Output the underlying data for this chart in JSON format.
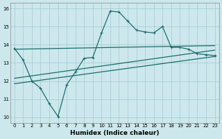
{
  "title": "",
  "xlabel": "Humidex (Indice chaleur)",
  "background_color": "#cce8ec",
  "grid_color": "#aacdd4",
  "line_color": "#1a6b6b",
  "xlim": [
    -0.5,
    23.5
  ],
  "ylim": [
    9.7,
    16.3
  ],
  "xticks": [
    0,
    1,
    2,
    3,
    4,
    5,
    6,
    7,
    8,
    9,
    10,
    11,
    12,
    13,
    14,
    15,
    16,
    17,
    18,
    19,
    20,
    21,
    22,
    23
  ],
  "yticks": [
    10,
    11,
    12,
    13,
    14,
    15,
    16
  ],
  "line1_x": [
    0,
    1,
    2,
    3,
    4,
    5,
    6,
    7,
    8,
    9,
    10,
    11,
    12,
    13,
    14,
    15,
    16,
    17,
    18,
    19,
    20,
    21,
    22,
    23
  ],
  "line1_y": [
    13.8,
    13.15,
    12.0,
    11.6,
    10.75,
    10.05,
    11.8,
    12.5,
    13.25,
    13.3,
    14.65,
    15.85,
    15.8,
    15.3,
    14.8,
    14.7,
    14.65,
    15.0,
    13.85,
    13.85,
    13.75,
    13.5,
    13.45,
    13.4
  ],
  "line2_x": [
    0,
    23
  ],
  "line2_y": [
    13.75,
    13.95
  ],
  "line3_x": [
    0,
    23
  ],
  "line3_y": [
    12.15,
    13.7
  ],
  "line4_x": [
    0,
    23
  ],
  "line4_y": [
    11.85,
    13.35
  ]
}
